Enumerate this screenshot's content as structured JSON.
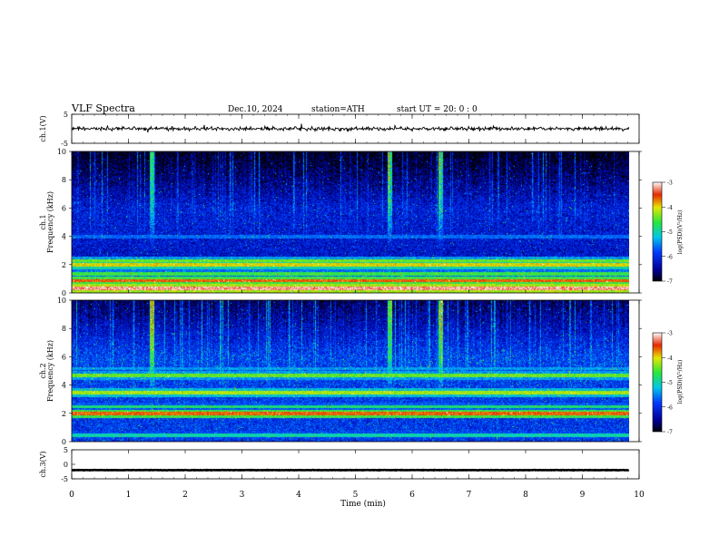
{
  "header": {
    "title": "VLF  Spectra",
    "date": "Dec.10, 2024",
    "station": "station=ATH",
    "start": "start  UT  =    20: 0   : 0"
  },
  "axes": {
    "xlabel": "Time  (min)",
    "ch1_waveform_label": "ch.1(V)",
    "ch3_waveform_label": "ch.3(V)",
    "ch1_spec_label": "ch.1",
    "ch2_spec_label": "ch.2",
    "freq_label": "Frequency  (kHz)",
    "colorbar_label": "log(PSD)(V²/Hz)"
  },
  "chart_data": [
    {
      "type": "line",
      "panel": "ch.1 waveform",
      "ylabel": "ch.1(V)",
      "ylim": [
        -5,
        5
      ],
      "yticks": [
        "5",
        "-5"
      ],
      "xlim": [
        0,
        10
      ],
      "mean_level": 0,
      "amplitude": 0.8
    },
    {
      "type": "heatmap",
      "panel": "ch.1 spectrogram",
      "ylabel": "Frequency  (kHz)",
      "ylim": [
        0,
        10
      ],
      "yticks": [
        "0",
        "2",
        "4",
        "6",
        "8",
        "10"
      ],
      "xlim": [
        0,
        10
      ],
      "data_end_min": 9.82,
      "colorbar": {
        "min": -7,
        "max": -3,
        "ticks": [
          "-3",
          "-4",
          "-5",
          "-6",
          "-7"
        ]
      },
      "bands": [
        {
          "freq_khz": 0.35,
          "log_psd": -3.2
        },
        {
          "freq_khz": 0.9,
          "log_psd": -3.6
        },
        {
          "freq_khz": 1.4,
          "log_psd": -4.6
        },
        {
          "freq_khz": 2.0,
          "log_psd": -4.0
        },
        {
          "freq_khz": 2.3,
          "log_psd": -4.4
        },
        {
          "freq_khz": 4.0,
          "log_psd": -5.6
        }
      ],
      "background_log_psd": -6.2,
      "bursts_min": [
        1.4,
        5.6,
        6.5
      ]
    },
    {
      "type": "heatmap",
      "panel": "ch.2 spectrogram",
      "ylabel": "Frequency  (kHz)",
      "ylim": [
        0,
        10
      ],
      "yticks": [
        "0",
        "2",
        "4",
        "6",
        "8",
        "10"
      ],
      "xlim": [
        0,
        10
      ],
      "data_end_min": 9.82,
      "colorbar": {
        "min": -7,
        "max": -3,
        "ticks": [
          "-3",
          "-4",
          "-5",
          "-6",
          "-7"
        ]
      },
      "bands": [
        {
          "freq_khz": 0.5,
          "log_psd": -5.0
        },
        {
          "freq_khz": 2.0,
          "log_psd": -3.6
        },
        {
          "freq_khz": 2.5,
          "log_psd": -4.8
        },
        {
          "freq_khz": 3.5,
          "log_psd": -4.2
        },
        {
          "freq_khz": 4.7,
          "log_psd": -4.4
        },
        {
          "freq_khz": 5.2,
          "log_psd": -5.4
        }
      ],
      "background_log_psd": -5.9,
      "bursts_min": [
        1.4,
        5.6,
        6.5
      ]
    },
    {
      "type": "line",
      "panel": "ch.3 waveform",
      "ylabel": "ch.3(V)",
      "ylim": [
        -5,
        5
      ],
      "yticks": [
        "5",
        "0",
        "-5"
      ],
      "xlim": [
        0,
        10
      ],
      "mean_level": -2,
      "amplitude": 0.1
    },
    {
      "type": "line",
      "panel": "time axis",
      "xlabel": "Time  (min)",
      "xlim": [
        0,
        10
      ],
      "xticks": [
        "0",
        "1",
        "2",
        "3",
        "4",
        "5",
        "6",
        "7",
        "8",
        "9",
        "10"
      ]
    }
  ]
}
